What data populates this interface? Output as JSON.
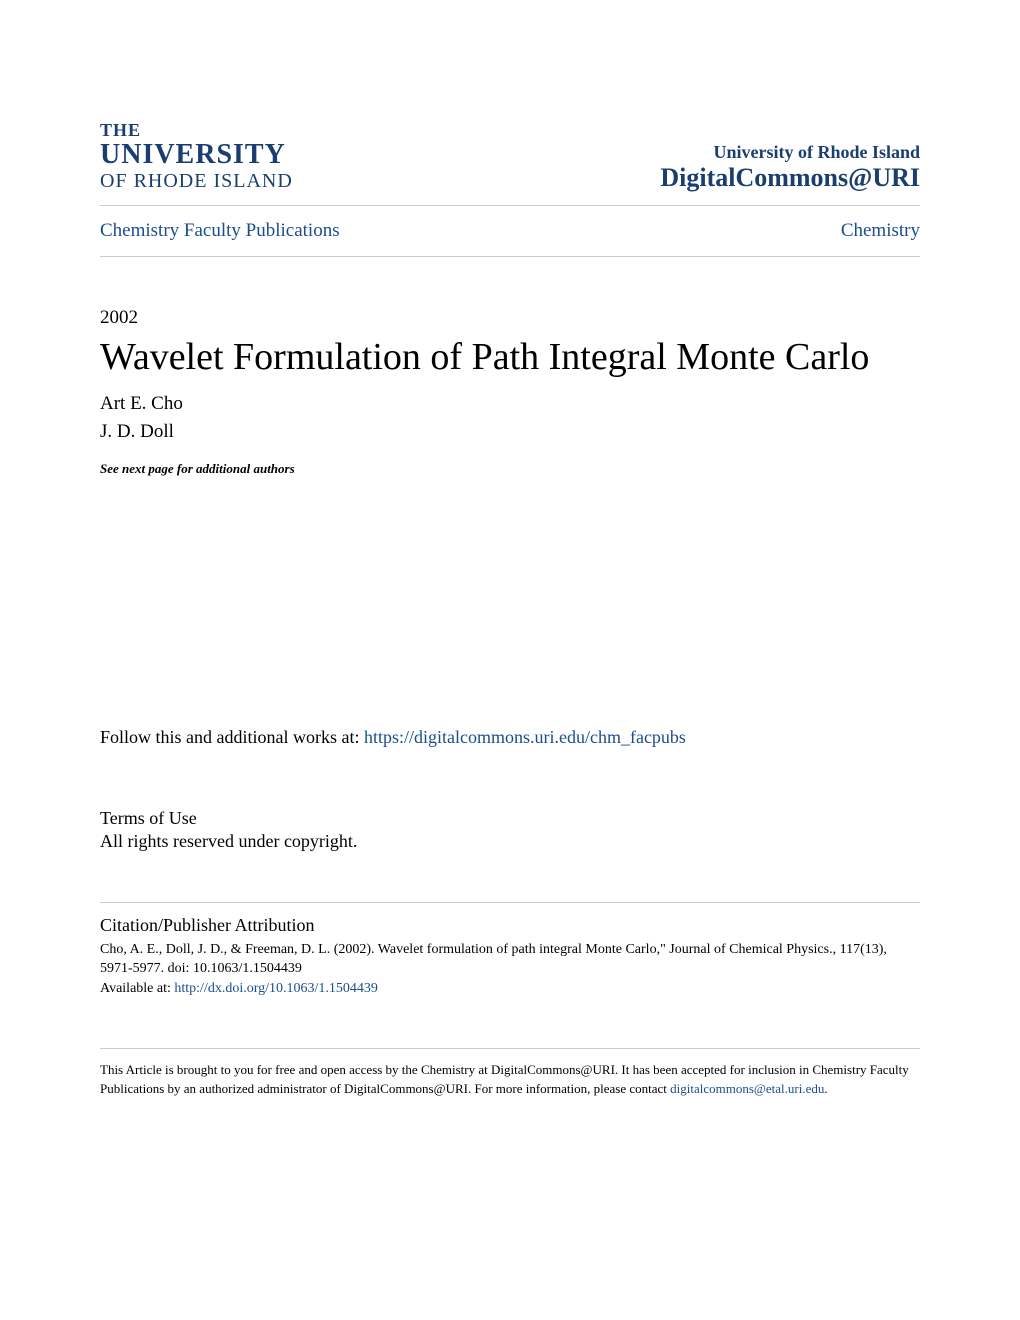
{
  "logo": {
    "line1": "THE",
    "line2": "UNIVERSITY",
    "line3": "OF RHODE ISLAND"
  },
  "header": {
    "institution": "University of Rhode Island",
    "repository": "DigitalCommons@URI"
  },
  "breadcrumb": {
    "left": "Chemistry Faculty Publications",
    "right": "Chemistry"
  },
  "year": "2002",
  "title": "Wavelet Formulation of Path Integral Monte Carlo",
  "authors": [
    "Art E. Cho",
    "J. D. Doll"
  ],
  "additional_authors_note": "See next page for additional authors",
  "follow": {
    "prefix": "Follow this and additional works at: ",
    "link_text": "https://digitalcommons.uri.edu/chm_facpubs"
  },
  "terms": {
    "heading": "Terms of Use",
    "body": "All rights reserved under copyright."
  },
  "citation": {
    "heading": "Citation/Publisher Attribution",
    "body": "Cho, A. E., Doll, J. D., & Freeman, D. L. (2002). Wavelet formulation of path integral Monte Carlo,\" Journal of Chemical Physics., 117(13), 5971-5977. doi: 10.1063/1.1504439",
    "available_prefix": "Available at: ",
    "available_link": "http://dx.doi.org/10.1063/1.1504439"
  },
  "footer": {
    "text_before": "This Article is brought to you for free and open access by the Chemistry at DigitalCommons@URI. It has been accepted for inclusion in Chemistry Faculty Publications by an authorized administrator of DigitalCommons@URI. For more information, please contact ",
    "email": "digitalcommons@etal.uri.edu",
    "text_after": "."
  },
  "colors": {
    "brand": "#1a3e6f",
    "link": "#1a4d8f",
    "text": "#000000",
    "border": "#cccccc",
    "background": "#ffffff"
  }
}
